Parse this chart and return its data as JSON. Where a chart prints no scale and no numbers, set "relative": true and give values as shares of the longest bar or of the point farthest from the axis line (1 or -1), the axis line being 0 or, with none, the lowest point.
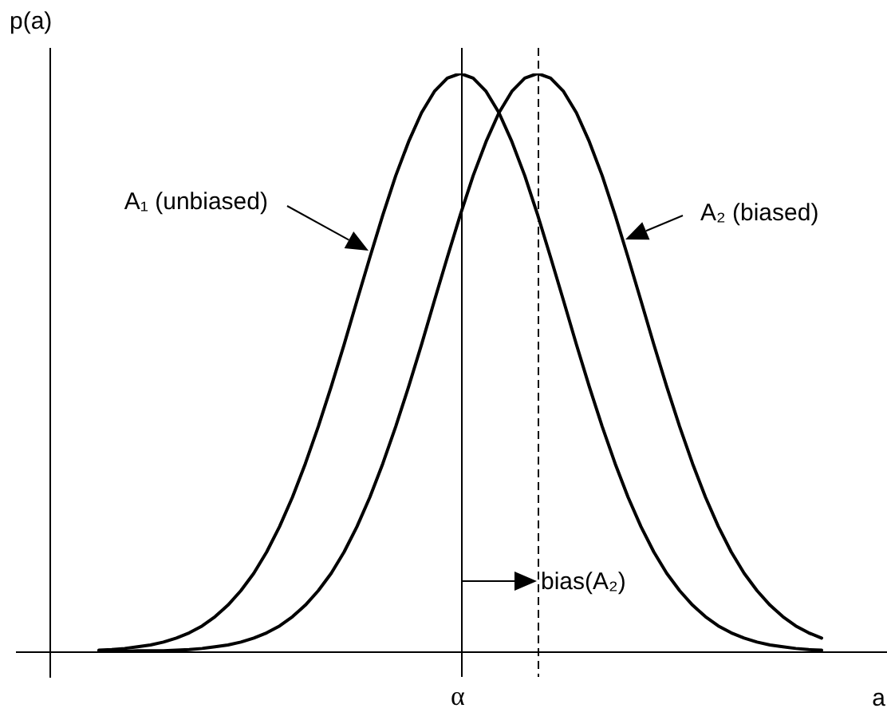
{
  "chart_data": {
    "type": "line",
    "relative": true,
    "xlabel": "a",
    "ylabel": "p(a)",
    "categories": [
      null,
      null,
      null,
      null,
      null,
      null,
      null,
      null,
      null,
      null,
      null,
      null,
      null,
      null,
      null,
      null,
      null,
      null,
      null,
      null,
      null,
      null,
      null,
      null,
      null,
      null,
      null,
      null,
      null,
      null,
      null,
      null,
      null,
      null,
      null,
      null,
      null,
      null,
      null,
      null,
      null,
      null,
      null,
      null,
      null,
      null,
      null,
      null,
      null,
      null,
      null,
      null,
      null,
      null,
      null,
      null,
      null
    ],
    "series": [
      {
        "color": "#000000",
        "values": [
          0.002,
          0.003,
          0.005,
          0.008,
          0.011,
          0.016,
          0.023,
          0.032,
          0.044,
          0.06,
          0.08,
          0.105,
          0.135,
          0.172,
          0.216,
          0.267,
          0.325,
          0.389,
          0.458,
          0.531,
          0.607,
          0.682,
          0.755,
          0.823,
          0.882,
          0.932,
          0.969,
          0.992,
          1,
          0.992,
          0.969,
          0.932,
          0.882,
          0.823,
          0.755,
          0.682,
          0.607,
          0.531,
          0.458,
          0.389,
          0.325,
          0.267,
          0.216,
          0.172,
          0.135,
          0.105,
          0.08,
          0.06,
          0.044,
          0.032,
          0.023,
          0.016,
          0.011,
          0.008,
          0.005,
          0.003,
          0.002
        ]
      },
      {
        "color": "#000000",
        "values": [
          0,
          0,
          0,
          0.001,
          0.001,
          0.001,
          0.002,
          0.003,
          0.005,
          0.008,
          0.011,
          0.016,
          0.023,
          0.032,
          0.044,
          0.06,
          0.08,
          0.105,
          0.135,
          0.172,
          0.216,
          0.267,
          0.325,
          0.389,
          0.458,
          0.531,
          0.607,
          0.682,
          0.755,
          0.823,
          0.882,
          0.932,
          0.969,
          0.992,
          1,
          0.992,
          0.969,
          0.932,
          0.882,
          0.823,
          0.755,
          0.682,
          0.607,
          0.531,
          0.458,
          0.389,
          0.325,
          0.267,
          0.216,
          0.172,
          0.135,
          0.105,
          0.08,
          0.06,
          0.044,
          0.032,
          0.023
        ]
      }
    ],
    "annotations": [
      "A₁ (unbiased)",
      "A₂ (biased)",
      "bias(A₂)",
      "α"
    ],
    "marker": "none",
    "line_style": "solid"
  }
}
